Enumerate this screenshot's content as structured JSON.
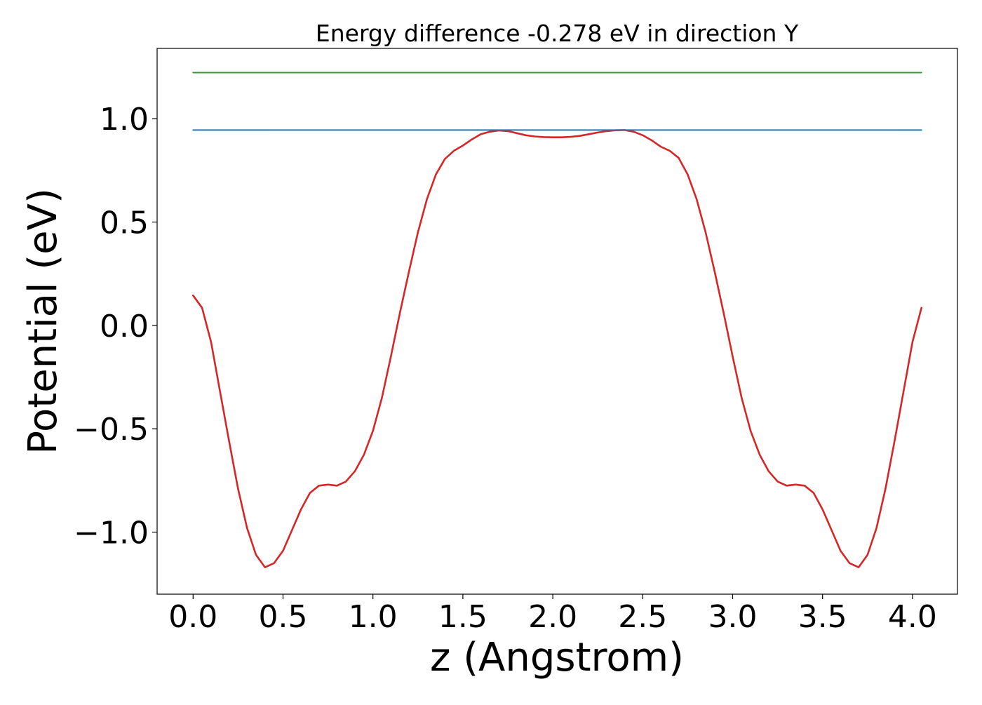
{
  "chart_data": {
    "type": "line",
    "title": "Energy difference -0.278 eV in direction Y",
    "xlabel": "z (Angstrom)",
    "ylabel": "Potential (eV)",
    "xlim": [
      -0.2,
      4.25
    ],
    "ylim": [
      -1.3,
      1.34
    ],
    "xticks": [
      {
        "value": 0.0,
        "label": "0.0"
      },
      {
        "value": 0.5,
        "label": "0.5"
      },
      {
        "value": 1.0,
        "label": "1.0"
      },
      {
        "value": 1.5,
        "label": "1.5"
      },
      {
        "value": 2.0,
        "label": "2.0"
      },
      {
        "value": 2.5,
        "label": "2.5"
      },
      {
        "value": 3.0,
        "label": "3.0"
      },
      {
        "value": 3.5,
        "label": "3.5"
      },
      {
        "value": 4.0,
        "label": "4.0"
      }
    ],
    "yticks": [
      {
        "value": -1.0,
        "label": "−1.0"
      },
      {
        "value": -0.5,
        "label": "−0.5"
      },
      {
        "value": 0.0,
        "label": "0.0"
      },
      {
        "value": 0.5,
        "label": "0.5"
      },
      {
        "value": 1.0,
        "label": "1.0"
      }
    ],
    "grid": false,
    "legend": "none",
    "series": [
      {
        "color": "#d62728",
        "x": [
          0.0,
          0.05,
          0.1,
          0.15,
          0.2,
          0.25,
          0.3,
          0.35,
          0.4,
          0.45,
          0.5,
          0.55,
          0.6,
          0.65,
          0.7,
          0.75,
          0.8,
          0.85,
          0.9,
          0.95,
          1.0,
          1.05,
          1.1,
          1.15,
          1.2,
          1.25,
          1.3,
          1.35,
          1.4,
          1.45,
          1.5,
          1.55,
          1.6,
          1.65,
          1.7,
          1.75,
          1.8,
          1.85,
          1.9,
          1.95,
          2.0,
          2.05,
          2.1,
          2.15,
          2.2,
          2.25,
          2.3,
          2.35,
          2.4,
          2.45,
          2.5,
          2.55,
          2.6,
          2.65,
          2.7,
          2.75,
          2.8,
          2.85,
          2.9,
          2.95,
          3.0,
          3.05,
          3.1,
          3.15,
          3.2,
          3.25,
          3.3,
          3.35,
          3.4,
          3.45,
          3.5,
          3.55,
          3.6,
          3.65,
          3.7,
          3.75,
          3.8,
          3.85,
          3.9,
          3.95,
          4.0,
          4.05
        ],
        "y": [
          0.145,
          0.085,
          -0.08,
          -0.32,
          -0.56,
          -0.79,
          -0.98,
          -1.11,
          -1.17,
          -1.15,
          -1.09,
          -0.99,
          -0.89,
          -0.81,
          -0.775,
          -0.77,
          -0.775,
          -0.755,
          -0.705,
          -0.625,
          -0.51,
          -0.35,
          -0.15,
          0.06,
          0.26,
          0.45,
          0.61,
          0.73,
          0.805,
          0.845,
          0.87,
          0.9,
          0.925,
          0.937,
          0.943,
          0.94,
          0.93,
          0.92,
          0.914,
          0.911,
          0.91,
          0.91,
          0.912,
          0.917,
          0.925,
          0.933,
          0.94,
          0.944,
          0.945,
          0.937,
          0.92,
          0.895,
          0.865,
          0.845,
          0.81,
          0.73,
          0.61,
          0.45,
          0.26,
          0.06,
          -0.15,
          -0.35,
          -0.51,
          -0.625,
          -0.705,
          -0.755,
          -0.775,
          -0.77,
          -0.775,
          -0.81,
          -0.89,
          -0.99,
          -1.09,
          -1.15,
          -1.17,
          -1.11,
          -0.98,
          -0.79,
          -0.56,
          -0.32,
          -0.08,
          0.085
        ]
      },
      {
        "color": "#1f77b4",
        "x": [
          0.0,
          4.05
        ],
        "y": [
          0.945,
          0.945
        ]
      },
      {
        "color": "#2ca02c",
        "x": [
          0.0,
          4.05
        ],
        "y": [
          1.223,
          1.223
        ]
      }
    ]
  }
}
